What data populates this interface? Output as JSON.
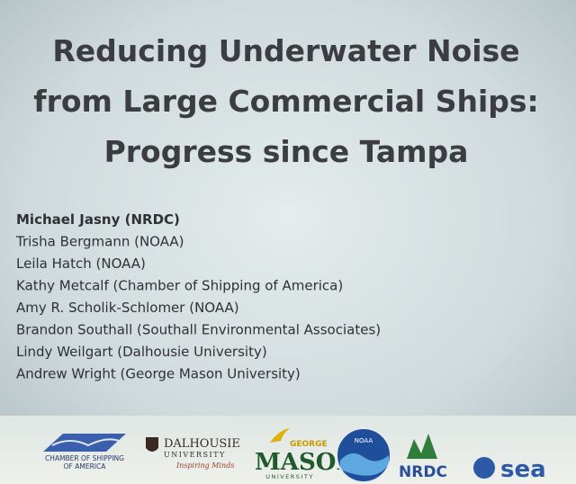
{
  "slide": {
    "title": [
      "Reducing Underwater Noise",
      "from Large Commercial Ships:",
      "Progress since Tampa"
    ],
    "authors": [
      "Michael Jasny (NRDC)",
      "Trisha Bergmann (NOAA)",
      "Leila Hatch (NOAA)",
      "Kathy Metcalf (Chamber of Shipping of America)",
      "Amy R. Scholik-Schlomer (NOAA)",
      "Brandon Southall (Southall Environmental Associates)",
      "Lindy Weilgart (Dalhousie University)",
      "Andrew Wright (George Mason University)"
    ],
    "logos": {
      "chamber": [
        "CHAMBER OF SHIPPING",
        "OF AMERICA"
      ],
      "dalhousie": [
        "DALHOUSIE",
        "UNIVERSITY",
        "Inspiring Minds"
      ],
      "mason": [
        "GEORGE",
        "MASON",
        "UNIVERSITY"
      ],
      "noaa": "NOAA",
      "nrdc": "NRDC",
      "sea": "sea"
    }
  }
}
